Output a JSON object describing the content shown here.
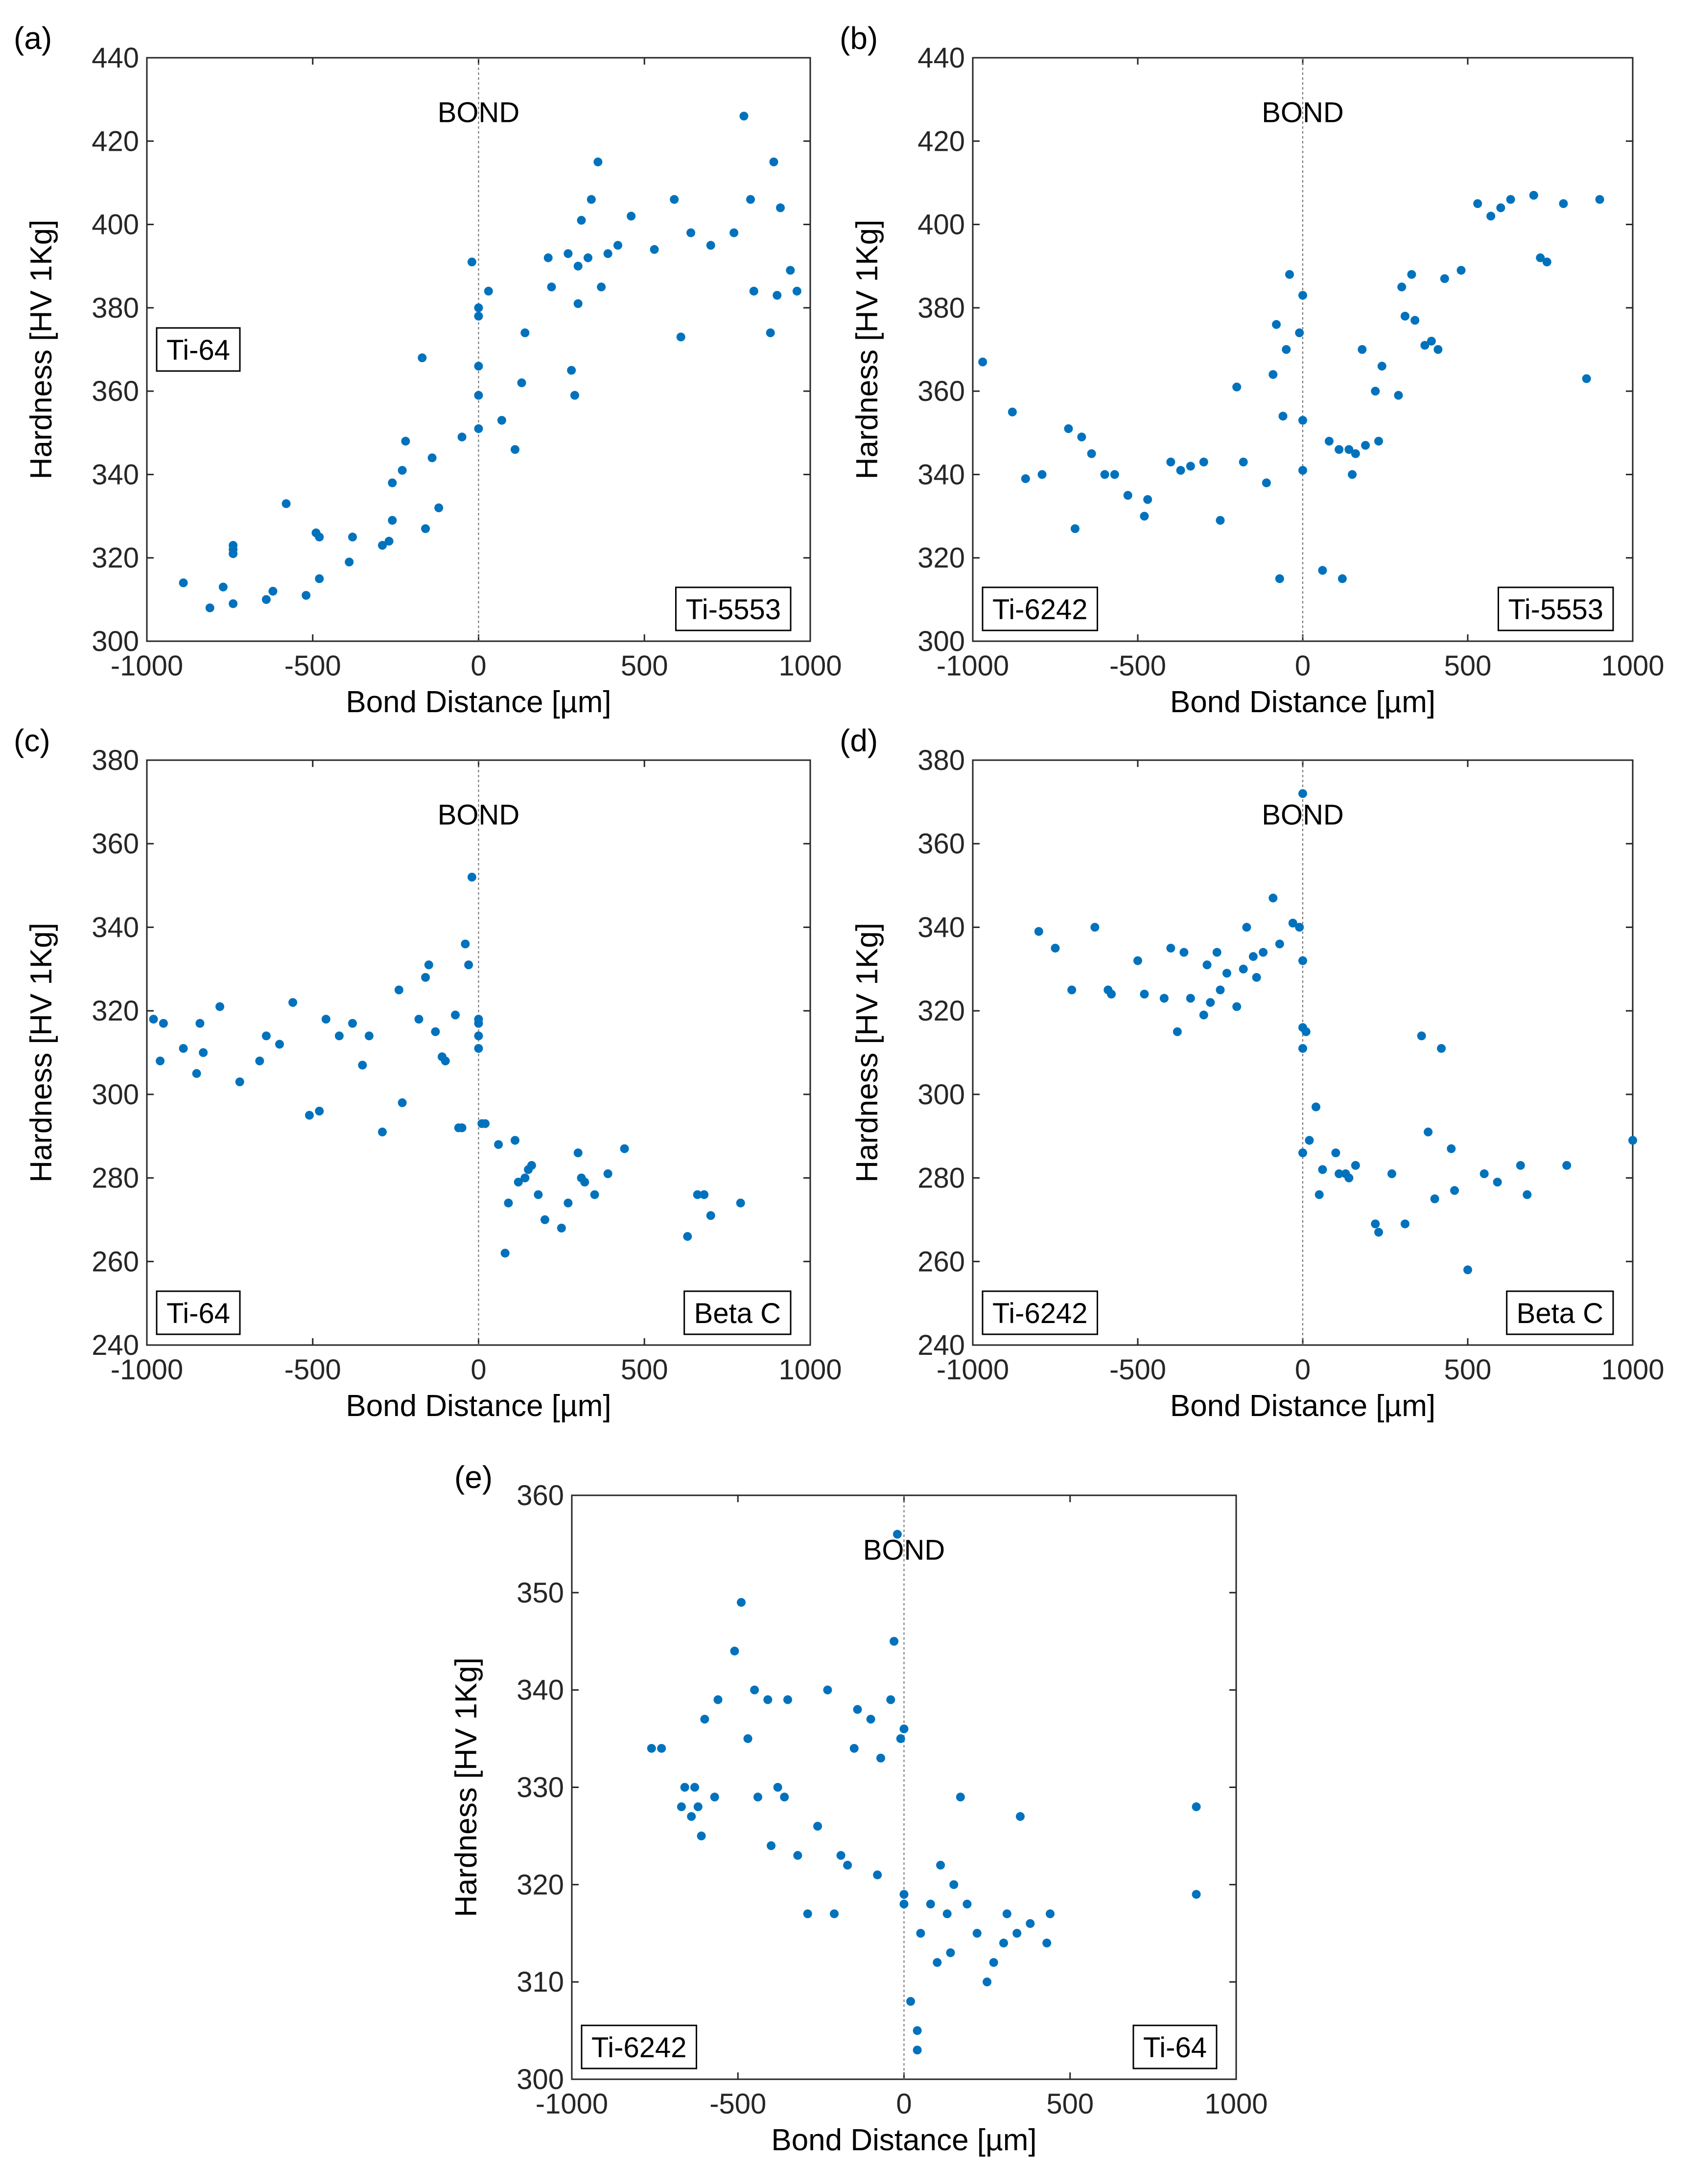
{
  "chart_data": [
    {
      "type": "scatter",
      "panel_label": "(a)",
      "xlabel": "Bond Distance [µm]",
      "ylabel": "Hardness [HV 1Kg]",
      "xlim": [
        -1000,
        1000
      ],
      "ylim": [
        300,
        440
      ],
      "xticks": [
        -1000,
        -500,
        0,
        500,
        1000
      ],
      "yticks": [
        300,
        320,
        340,
        360,
        380,
        400,
        420,
        440
      ],
      "bond_label": "BOND",
      "bond_x": 0,
      "left_material": "Ti-64",
      "right_material": "Ti-5553",
      "left_material_position": "middle-left",
      "right_material_position": "bottom-right",
      "x": [
        -890,
        -810,
        -770,
        -740,
        -740,
        -740,
        -740,
        -640,
        -620,
        -580,
        -520,
        -490,
        -480,
        -480,
        -390,
        -380,
        -290,
        -270,
        -260,
        -260,
        -230,
        -220,
        -170,
        -160,
        -140,
        -120,
        -50,
        -20,
        0,
        0,
        0,
        0,
        0,
        30,
        70,
        110,
        130,
        140,
        210,
        220,
        270,
        280,
        290,
        300,
        300,
        310,
        330,
        340,
        360,
        370,
        390,
        420,
        460,
        530,
        590,
        610,
        640,
        700,
        770,
        800,
        820,
        830,
        880,
        890,
        900,
        910,
        940,
        960
      ],
      "y": [
        314,
        308,
        313,
        309,
        321,
        322,
        323,
        310,
        312,
        333,
        311,
        326,
        325,
        315,
        319,
        325,
        323,
        324,
        329,
        338,
        341,
        348,
        368,
        327,
        344,
        332,
        349,
        391,
        351,
        359,
        366,
        378,
        380,
        384,
        353,
        346,
        362,
        374,
        392,
        385,
        393,
        365,
        359,
        381,
        390,
        401,
        392,
        406,
        415,
        385,
        393,
        395,
        402,
        394,
        406,
        373,
        398,
        395,
        398,
        426,
        406,
        384,
        374,
        415,
        383,
        404,
        389,
        384
      ]
    },
    {
      "type": "scatter",
      "panel_label": "(b)",
      "xlabel": "Bond Distance [µm]",
      "ylabel": "Hardness [HV 1Kg]",
      "xlim": [
        -1000,
        1000
      ],
      "ylim": [
        300,
        440
      ],
      "xticks": [
        -1000,
        -500,
        0,
        500,
        1000
      ],
      "yticks": [
        300,
        320,
        340,
        360,
        380,
        400,
        420,
        440
      ],
      "bond_label": "BOND",
      "bond_x": 0,
      "left_material": "Ti-6242",
      "right_material": "Ti-5553",
      "left_material_position": "bottom-left",
      "right_material_position": "bottom-right",
      "x": [
        -970,
        -880,
        -840,
        -790,
        -710,
        -690,
        -670,
        -640,
        -600,
        -570,
        -530,
        -480,
        -470,
        -400,
        -370,
        -340,
        -300,
        -250,
        -200,
        -180,
        -110,
        -90,
        -80,
        -70,
        -60,
        -50,
        -40,
        -10,
        0,
        0,
        0,
        60,
        80,
        110,
        120,
        140,
        150,
        160,
        180,
        190,
        220,
        230,
        240,
        290,
        300,
        310,
        330,
        340,
        370,
        390,
        410,
        430,
        480,
        530,
        570,
        600,
        630,
        700,
        720,
        740,
        790,
        860,
        900
      ],
      "y": [
        367,
        355,
        339,
        340,
        351,
        327,
        349,
        345,
        340,
        340,
        335,
        330,
        334,
        343,
        341,
        342,
        343,
        329,
        361,
        343,
        338,
        364,
        376,
        315,
        354,
        370,
        388,
        374,
        383,
        341,
        353,
        317,
        348,
        346,
        315,
        346,
        340,
        345,
        370,
        347,
        360,
        348,
        366,
        359,
        385,
        378,
        388,
        377,
        371,
        372,
        370,
        387,
        389,
        405,
        402,
        404,
        406,
        407,
        392,
        391,
        405,
        363,
        406
      ]
    },
    {
      "type": "scatter",
      "panel_label": "(c)",
      "xlabel": "Bond Distance [µm]",
      "ylabel": "Hardness [HV 1Kg]",
      "xlim": [
        -1000,
        1000
      ],
      "ylim": [
        240,
        380
      ],
      "xticks": [
        -1000,
        -500,
        0,
        500,
        1000
      ],
      "yticks": [
        240,
        260,
        280,
        300,
        320,
        340,
        360,
        380
      ],
      "bond_label": "BOND",
      "bond_x": 0,
      "left_material": "Ti-64",
      "right_material": "Beta C",
      "left_material_position": "bottom-left",
      "right_material_position": "bottom-right",
      "x": [
        -980,
        -960,
        -950,
        -890,
        -850,
        -840,
        -830,
        -780,
        -720,
        -660,
        -640,
        -600,
        -560,
        -510,
        -480,
        -460,
        -420,
        -380,
        -350,
        -330,
        -290,
        -240,
        -230,
        -180,
        -160,
        -150,
        -130,
        -110,
        -100,
        -70,
        -60,
        -50,
        -40,
        -30,
        -20,
        0,
        0,
        0,
        0,
        10,
        20,
        60,
        80,
        90,
        110,
        120,
        140,
        150,
        160,
        180,
        200,
        250,
        270,
        300,
        310,
        320,
        350,
        390,
        440,
        630,
        660,
        680,
        700,
        790
      ],
      "y": [
        318,
        308,
        317,
        311,
        305,
        317,
        310,
        321,
        303,
        308,
        314,
        312,
        322,
        295,
        296,
        318,
        314,
        317,
        307,
        314,
        291,
        325,
        298,
        318,
        328,
        331,
        315,
        309,
        308,
        319,
        292,
        292,
        336,
        331,
        352,
        318,
        317,
        311,
        314,
        293,
        293,
        288,
        262,
        274,
        289,
        279,
        280,
        282,
        283,
        276,
        270,
        268,
        274,
        286,
        280,
        279,
        276,
        281,
        287,
        266,
        276,
        276,
        271,
        274
      ]
    },
    {
      "type": "scatter",
      "panel_label": "(d)",
      "xlabel": "Bond Distance [µm]",
      "ylabel": "Hardness [HV 1Kg]",
      "xlim": [
        -1000,
        1000
      ],
      "ylim": [
        240,
        380
      ],
      "xticks": [
        -1000,
        -500,
        0,
        500,
        1000
      ],
      "yticks": [
        240,
        260,
        280,
        300,
        320,
        340,
        360,
        380
      ],
      "bond_label": "BOND",
      "bond_x": 0,
      "left_material": "Ti-6242",
      "right_material": "Beta C",
      "left_material_position": "bottom-left",
      "right_material_position": "bottom-right",
      "x": [
        -800,
        -750,
        -700,
        -630,
        -590,
        -580,
        -500,
        -480,
        -420,
        -400,
        -380,
        -360,
        -340,
        -300,
        -290,
        -280,
        -260,
        -250,
        -230,
        -200,
        -180,
        -170,
        -150,
        -140,
        -120,
        -90,
        -70,
        -30,
        -10,
        0,
        0,
        0,
        0,
        0,
        10,
        20,
        40,
        50,
        60,
        100,
        110,
        130,
        140,
        160,
        220,
        230,
        270,
        310,
        360,
        380,
        400,
        420,
        450,
        460,
        500,
        550,
        590,
        660,
        680,
        800,
        1000
      ],
      "y": [
        339,
        335,
        325,
        340,
        325,
        324,
        332,
        324,
        323,
        335,
        315,
        334,
        323,
        319,
        331,
        322,
        334,
        325,
        329,
        321,
        330,
        340,
        333,
        328,
        334,
        347,
        336,
        341,
        340,
        332,
        372,
        316,
        311,
        286,
        315,
        289,
        297,
        276,
        282,
        286,
        281,
        281,
        280,
        283,
        269,
        267,
        281,
        269,
        314,
        291,
        275,
        311,
        287,
        277,
        258,
        281,
        279,
        283,
        276,
        283,
        289
      ]
    },
    {
      "type": "scatter",
      "panel_label": "(e)",
      "xlabel": "Bond Distance [µm]",
      "ylabel": "Hardness [HV 1Kg]",
      "xlim": [
        -1000,
        1000
      ],
      "ylim": [
        300,
        360
      ],
      "xticks": [
        -1000,
        -500,
        0,
        500,
        1000
      ],
      "yticks": [
        300,
        310,
        320,
        330,
        340,
        350,
        360
      ],
      "bond_label": "BOND",
      "bond_x": 0,
      "left_material": "Ti-6242",
      "right_material": "Ti-64",
      "left_material_position": "bottom-left",
      "right_material_position": "bottom-right",
      "x": [
        -760,
        -730,
        -670,
        -660,
        -640,
        -630,
        -620,
        -610,
        -600,
        -570,
        -560,
        -510,
        -490,
        -470,
        -450,
        -440,
        -410,
        -400,
        -380,
        -360,
        -350,
        -320,
        -290,
        -260,
        -230,
        -210,
        -190,
        -170,
        -150,
        -140,
        -100,
        -80,
        -70,
        -40,
        -30,
        -20,
        -10,
        0,
        0,
        0,
        20,
        40,
        40,
        50,
        80,
        100,
        110,
        130,
        140,
        150,
        170,
        190,
        220,
        250,
        270,
        300,
        310,
        340,
        350,
        380,
        430,
        440,
        880,
        880
      ],
      "y": [
        334,
        334,
        328,
        330,
        327,
        330,
        328,
        325,
        337,
        329,
        339,
        344,
        349,
        335,
        340,
        329,
        339,
        324,
        330,
        329,
        339,
        323,
        317,
        326,
        340,
        317,
        323,
        322,
        334,
        338,
        337,
        321,
        333,
        339,
        345,
        356,
        335,
        336,
        319,
        318,
        308,
        303,
        305,
        315,
        318,
        312,
        322,
        317,
        313,
        320,
        329,
        318,
        315,
        310,
        312,
        314,
        317,
        315,
        327,
        316,
        314,
        317,
        328,
        319
      ]
    }
  ]
}
